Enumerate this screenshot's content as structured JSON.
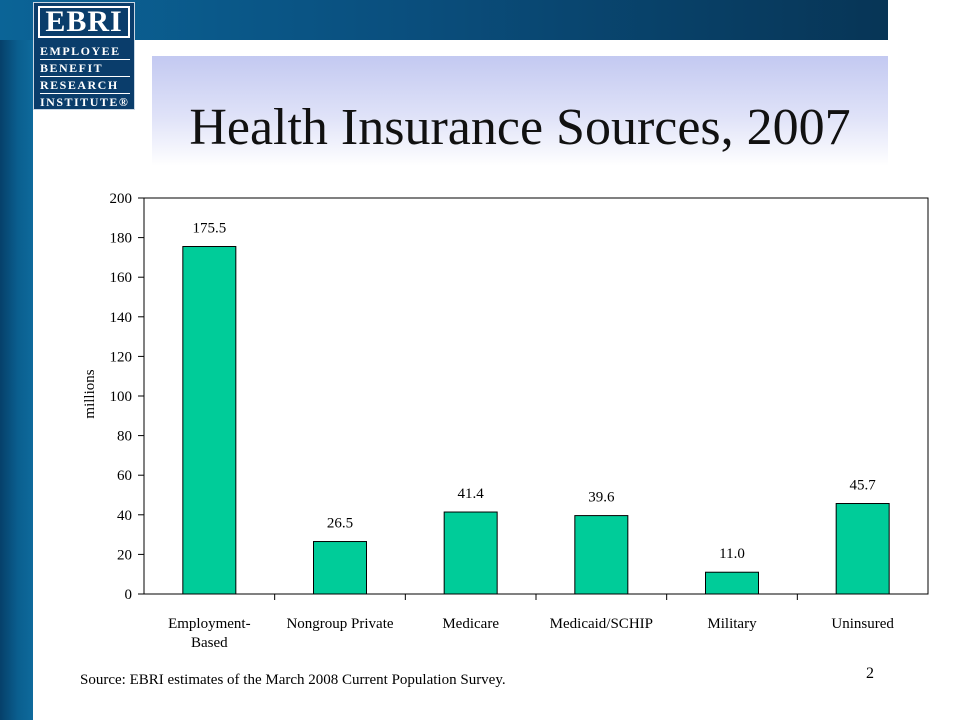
{
  "logo": {
    "name": "EBRI",
    "lines": [
      "EMPLOYEE",
      "BENEFIT",
      "RESEARCH",
      "INSTITUTE®"
    ]
  },
  "slide": {
    "title": "Health Insurance Sources, 2007",
    "source": "Source: EBRI estimates of the March 2008 Current Population Survey.",
    "page_number": "2"
  },
  "chart_data": {
    "type": "bar",
    "categories": [
      [
        "Employment-",
        "Based"
      ],
      [
        "Nongroup Private"
      ],
      [
        "Medicare"
      ],
      [
        "Medicaid/SCHIP"
      ],
      [
        "Military"
      ],
      [
        "Uninsured"
      ]
    ],
    "values": [
      175.5,
      26.5,
      41.4,
      39.6,
      11.0,
      45.7
    ],
    "data_labels": [
      "175.5",
      "26.5",
      "41.4",
      "39.6",
      "11.0",
      "45.7"
    ],
    "ylabel": "millions",
    "ylim": [
      0,
      200
    ],
    "yticks": [
      0,
      20,
      40,
      60,
      80,
      100,
      120,
      140,
      160,
      180,
      200
    ],
    "bar_color": "#00cc99",
    "grid": false
  }
}
